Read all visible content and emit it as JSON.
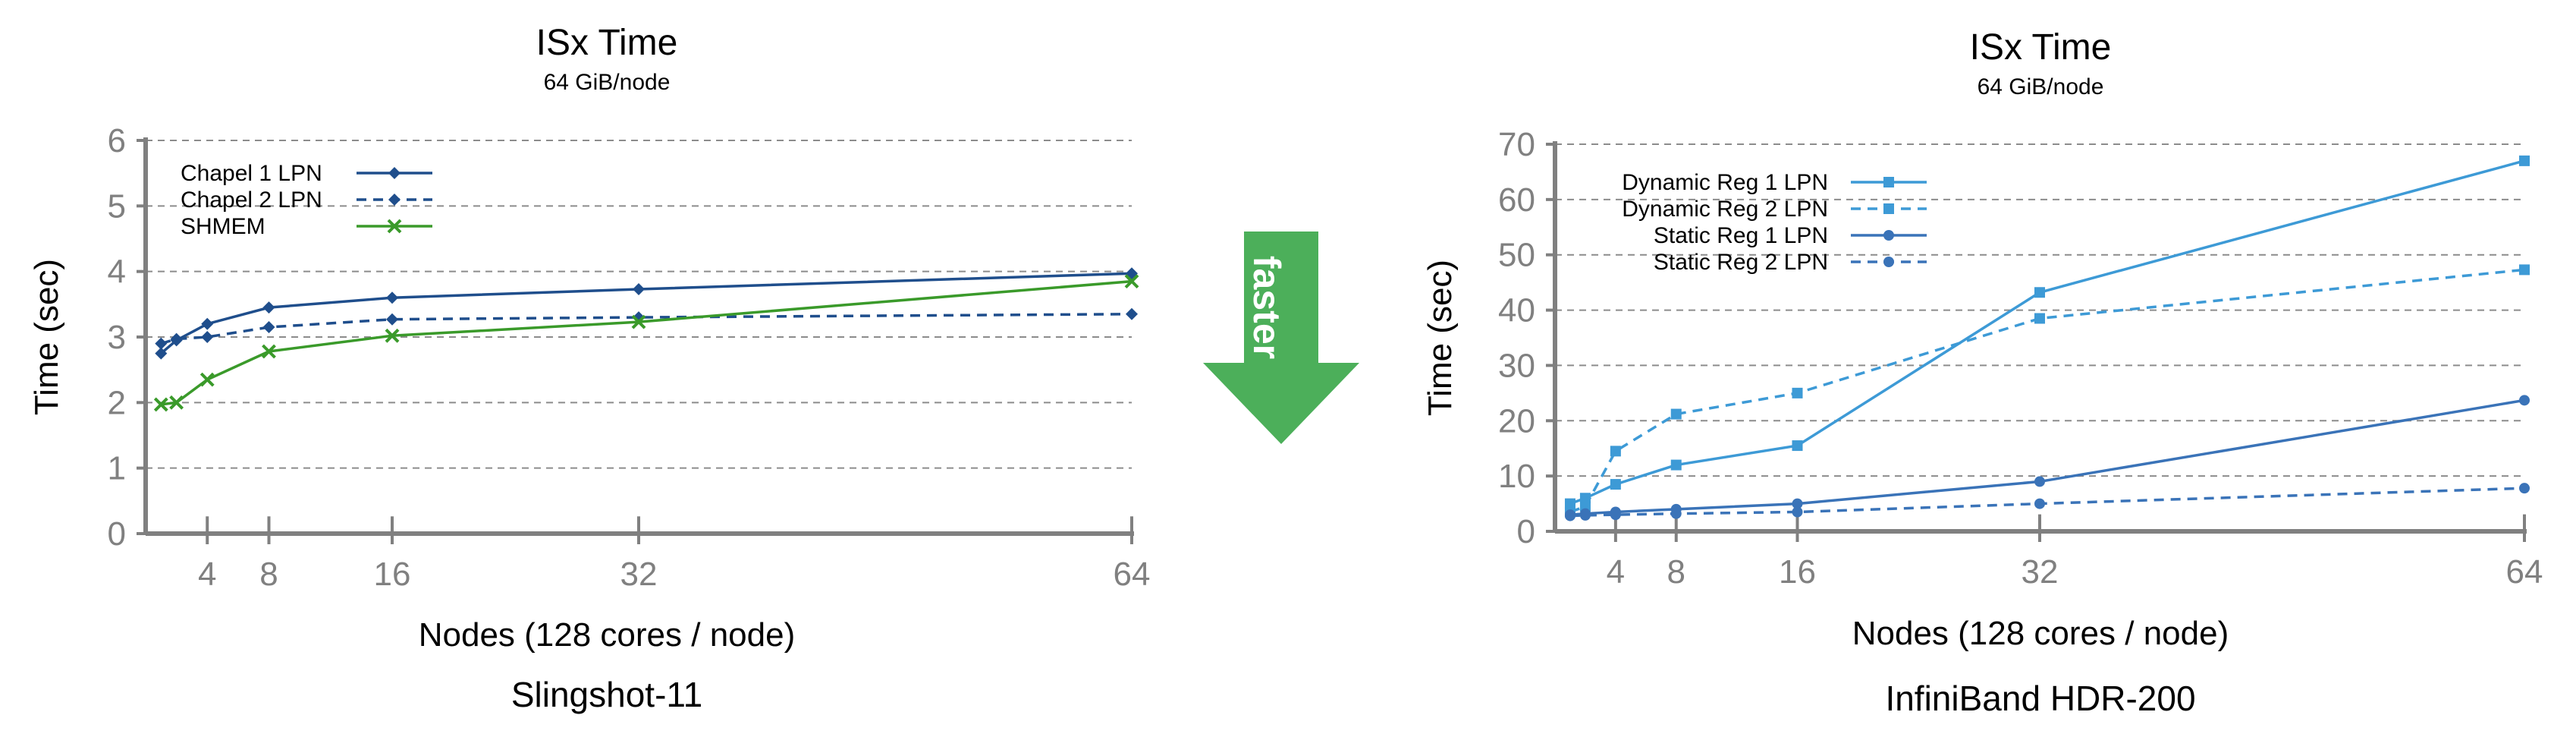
{
  "arrow": {
    "label": "faster",
    "color": "#4caf5a"
  },
  "chart_data": [
    {
      "type": "line",
      "title": "ISx Time",
      "subtitle": "64 GiB/node",
      "xlabel": "Nodes (128 cores / node)",
      "ylabel": "Time (sec)",
      "caption": "Slingshot-11",
      "x_ticks": [
        4,
        8,
        16,
        32,
        64
      ],
      "x_tick_labels": [
        "4",
        "8",
        "16",
        "32",
        "64"
      ],
      "xlim": [
        0,
        64
      ],
      "ylim": [
        0,
        6
      ],
      "y_ticks": [
        0,
        1,
        2,
        3,
        4,
        5,
        6
      ],
      "y_tick_labels": [
        "0",
        "1",
        "2",
        "3",
        "4",
        "5",
        "6"
      ],
      "grid": "horizontal dashed",
      "legend_position": "top-left",
      "series": [
        {
          "name": "Chapel 1 LPN",
          "color": "#1f4e8c",
          "dash": "solid",
          "marker": "diamond",
          "x": [
            1,
            2,
            4,
            8,
            16,
            32,
            64
          ],
          "y": [
            2.75,
            2.95,
            3.2,
            3.45,
            3.6,
            3.73,
            3.97
          ]
        },
        {
          "name": "Chapel 2 LPN",
          "color": "#1f4e8c",
          "dash": "dashed",
          "marker": "diamond",
          "x": [
            1,
            2,
            4,
            8,
            16,
            32,
            64
          ],
          "y": [
            2.9,
            2.97,
            3.0,
            3.15,
            3.27,
            3.3,
            3.35
          ]
        },
        {
          "name": "SHMEM",
          "color": "#3a9a2a",
          "dash": "solid",
          "marker": "x",
          "x": [
            1,
            2,
            4,
            8,
            16,
            32,
            64
          ],
          "y": [
            1.97,
            2.0,
            2.35,
            2.78,
            3.02,
            3.23,
            3.85
          ]
        }
      ]
    },
    {
      "type": "line",
      "title": "ISx Time",
      "subtitle": "64 GiB/node",
      "xlabel": "Nodes (128 cores / node)",
      "ylabel": "Time (sec)",
      "caption": "InfiniBand HDR-200",
      "x_ticks": [
        4,
        8,
        16,
        32,
        64
      ],
      "x_tick_labels": [
        "4",
        "8",
        "16",
        "32",
        "64"
      ],
      "xlim": [
        0,
        64
      ],
      "ylim": [
        0,
        70
      ],
      "y_ticks": [
        0,
        10,
        20,
        30,
        40,
        50,
        60,
        70
      ],
      "y_tick_labels": [
        "0",
        "10",
        "20",
        "30",
        "40",
        "50",
        "60",
        "70"
      ],
      "grid": "horizontal dashed",
      "legend_position": "top-left",
      "series": [
        {
          "name": "Dynamic Reg 1 LPN",
          "color": "#3d9ad6",
          "dash": "solid",
          "marker": "square",
          "x": [
            1,
            2,
            4,
            8,
            16,
            32,
            64
          ],
          "y": [
            5.0,
            6.0,
            8.5,
            12.0,
            15.5,
            43.2,
            67.0
          ]
        },
        {
          "name": "Dynamic Reg 2 LPN",
          "color": "#3d9ad6",
          "dash": "dashed",
          "marker": "square",
          "x": [
            1,
            2,
            4,
            8,
            16,
            32,
            64
          ],
          "y": [
            3.5,
            4.5,
            14.5,
            21.2,
            25.0,
            38.5,
            47.3
          ]
        },
        {
          "name": "Static Reg 1 LPN",
          "color": "#3a73b8",
          "dash": "solid",
          "marker": "circle",
          "x": [
            1,
            2,
            4,
            8,
            16,
            32,
            64
          ],
          "y": [
            3.0,
            3.2,
            3.5,
            4.0,
            5.0,
            9.0,
            23.7
          ]
        },
        {
          "name": "Static Reg 2 LPN",
          "color": "#3a73b8",
          "dash": "dashed",
          "marker": "circle",
          "x": [
            1,
            2,
            4,
            8,
            16,
            32,
            64
          ],
          "y": [
            2.8,
            2.9,
            3.0,
            3.2,
            3.5,
            5.0,
            7.8
          ]
        }
      ]
    }
  ]
}
